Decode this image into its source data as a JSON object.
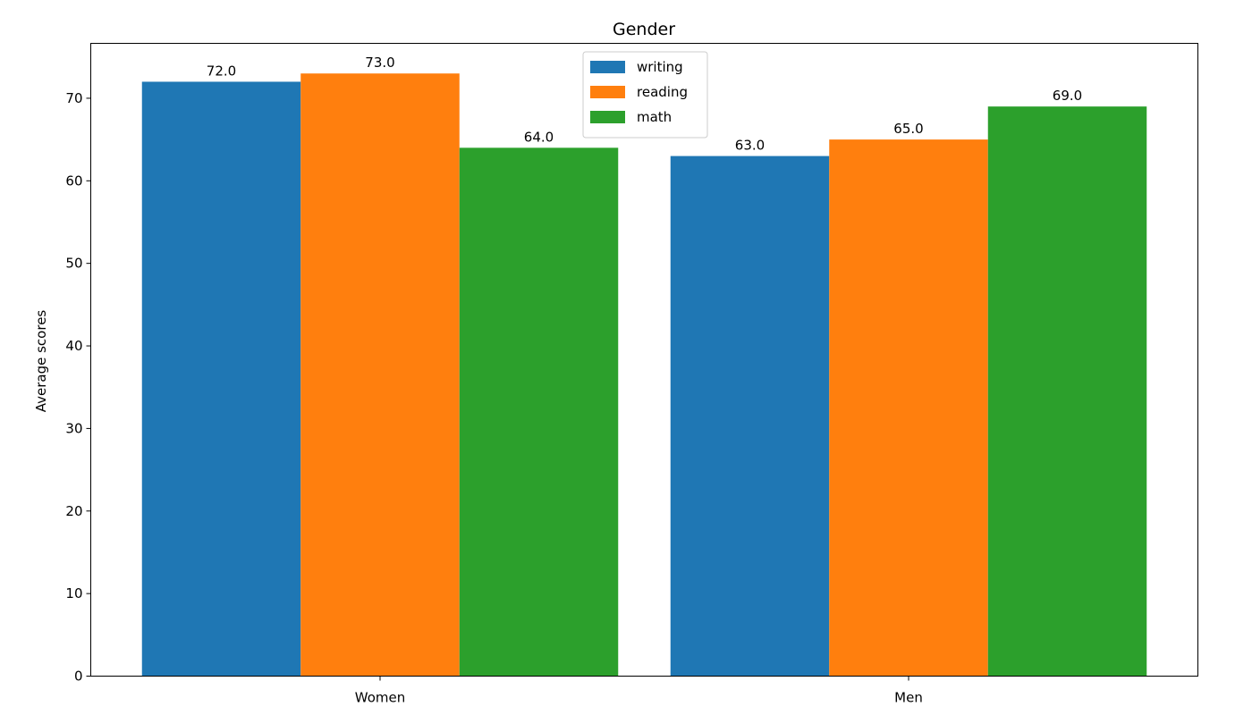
{
  "chart_data": {
    "type": "bar",
    "title": "Gender",
    "xlabel": "",
    "ylabel": "Average scores",
    "categories": [
      "Women",
      "Men"
    ],
    "series": [
      {
        "name": "writing",
        "values": [
          72.0,
          63.0
        ],
        "color": "#1f77b4",
        "value_labels": [
          "72.0",
          "63.0"
        ]
      },
      {
        "name": "reading",
        "values": [
          73.0,
          65.0
        ],
        "color": "#ff7f0e",
        "value_labels": [
          "73.0",
          "65.0"
        ]
      },
      {
        "name": "math",
        "values": [
          64.0,
          69.0
        ],
        "color": "#2ca02c",
        "value_labels": [
          "64.0",
          "69.0"
        ]
      }
    ],
    "ylim": [
      0,
      76.65
    ],
    "yticks": [
      0,
      10,
      20,
      30,
      40,
      50,
      60,
      70
    ],
    "ytick_labels": [
      "0",
      "10",
      "20",
      "30",
      "40",
      "50",
      "60",
      "70"
    ],
    "grid": false,
    "legend_position": "upper center"
  }
}
